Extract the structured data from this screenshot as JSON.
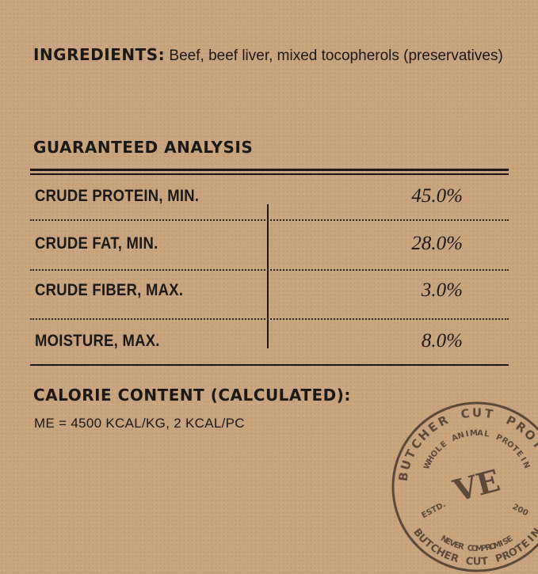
{
  "ingredients": {
    "label": "INGREDIENTS:",
    "text": " Beef, beef liver, mixed tocopherols (preservatives)"
  },
  "guaranteed_analysis": {
    "title": "GUARANTEED ANALYSIS",
    "rows": [
      {
        "label": "CRUDE PROTEIN, MIN.",
        "value": "45.0%"
      },
      {
        "label": "CRUDE FAT, MIN.",
        "value": "28.0%"
      },
      {
        "label": "CRUDE FIBER, MAX.",
        "value": "3.0%"
      },
      {
        "label": "MOISTURE, MAX.",
        "value": "8.0%"
      }
    ]
  },
  "calorie": {
    "title": "CALORIE CONTENT (CALCULATED):",
    "value": "ME = 4500 KCAL/KG, 2 KCAL/PC"
  },
  "stamp": {
    "outer": "BUTCHER CUT PROTEIN",
    "inner": "WHOLE ANIMAL PROTEIN",
    "monogram": "VE",
    "estd": "ESTD.",
    "year": "200",
    "bottom": "NEVER COMPROMISE",
    "outer_bottom": "BUTCHER CUT PROTEIN",
    "color": "#4a3a2c"
  }
}
